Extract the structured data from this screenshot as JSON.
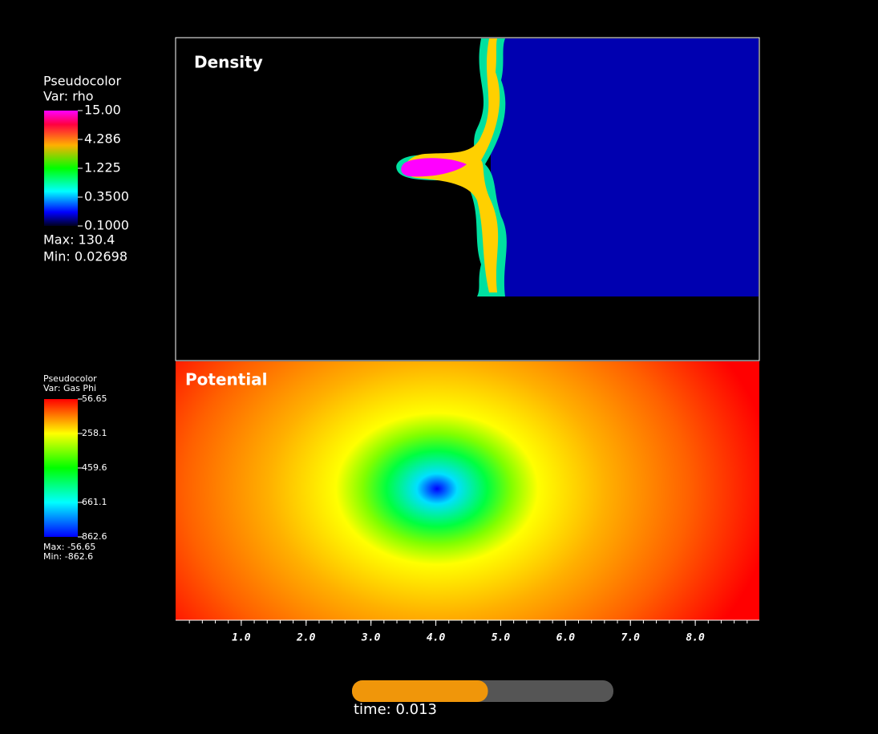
{
  "panels": [
    {
      "title": "Density"
    },
    {
      "title": "Potential"
    }
  ],
  "legends": [
    {
      "kind": "Pseudocolor",
      "var": "Var: rho",
      "ticks": [
        "15.00",
        "4.286",
        "1.225",
        "0.3500",
        "0.1000"
      ],
      "max": "Max:  130.4",
      "min": "Min:  0.02698"
    },
    {
      "kind": "Pseudocolor",
      "var": "Var: Gas Phi",
      "ticks": [
        "-56.65",
        "-258.1",
        "-459.6",
        "-661.1",
        "-862.6"
      ],
      "max": "Max: -56.65",
      "min": "Min: -862.6"
    }
  ],
  "x_axis": {
    "xlim": [
      0,
      9
    ],
    "xticks": [
      {
        "value": 1,
        "label": "1.0"
      },
      {
        "value": 2,
        "label": "2.0"
      },
      {
        "value": 3,
        "label": "3.0"
      },
      {
        "value": 4,
        "label": "4.0"
      },
      {
        "value": 5,
        "label": "5.0"
      },
      {
        "value": 6,
        "label": "6.0"
      },
      {
        "value": 7,
        "label": "7.0"
      },
      {
        "value": 8,
        "label": "8.0"
      }
    ]
  },
  "time_slider": {
    "label": "time: 0.013",
    "progress": 0.52
  }
}
